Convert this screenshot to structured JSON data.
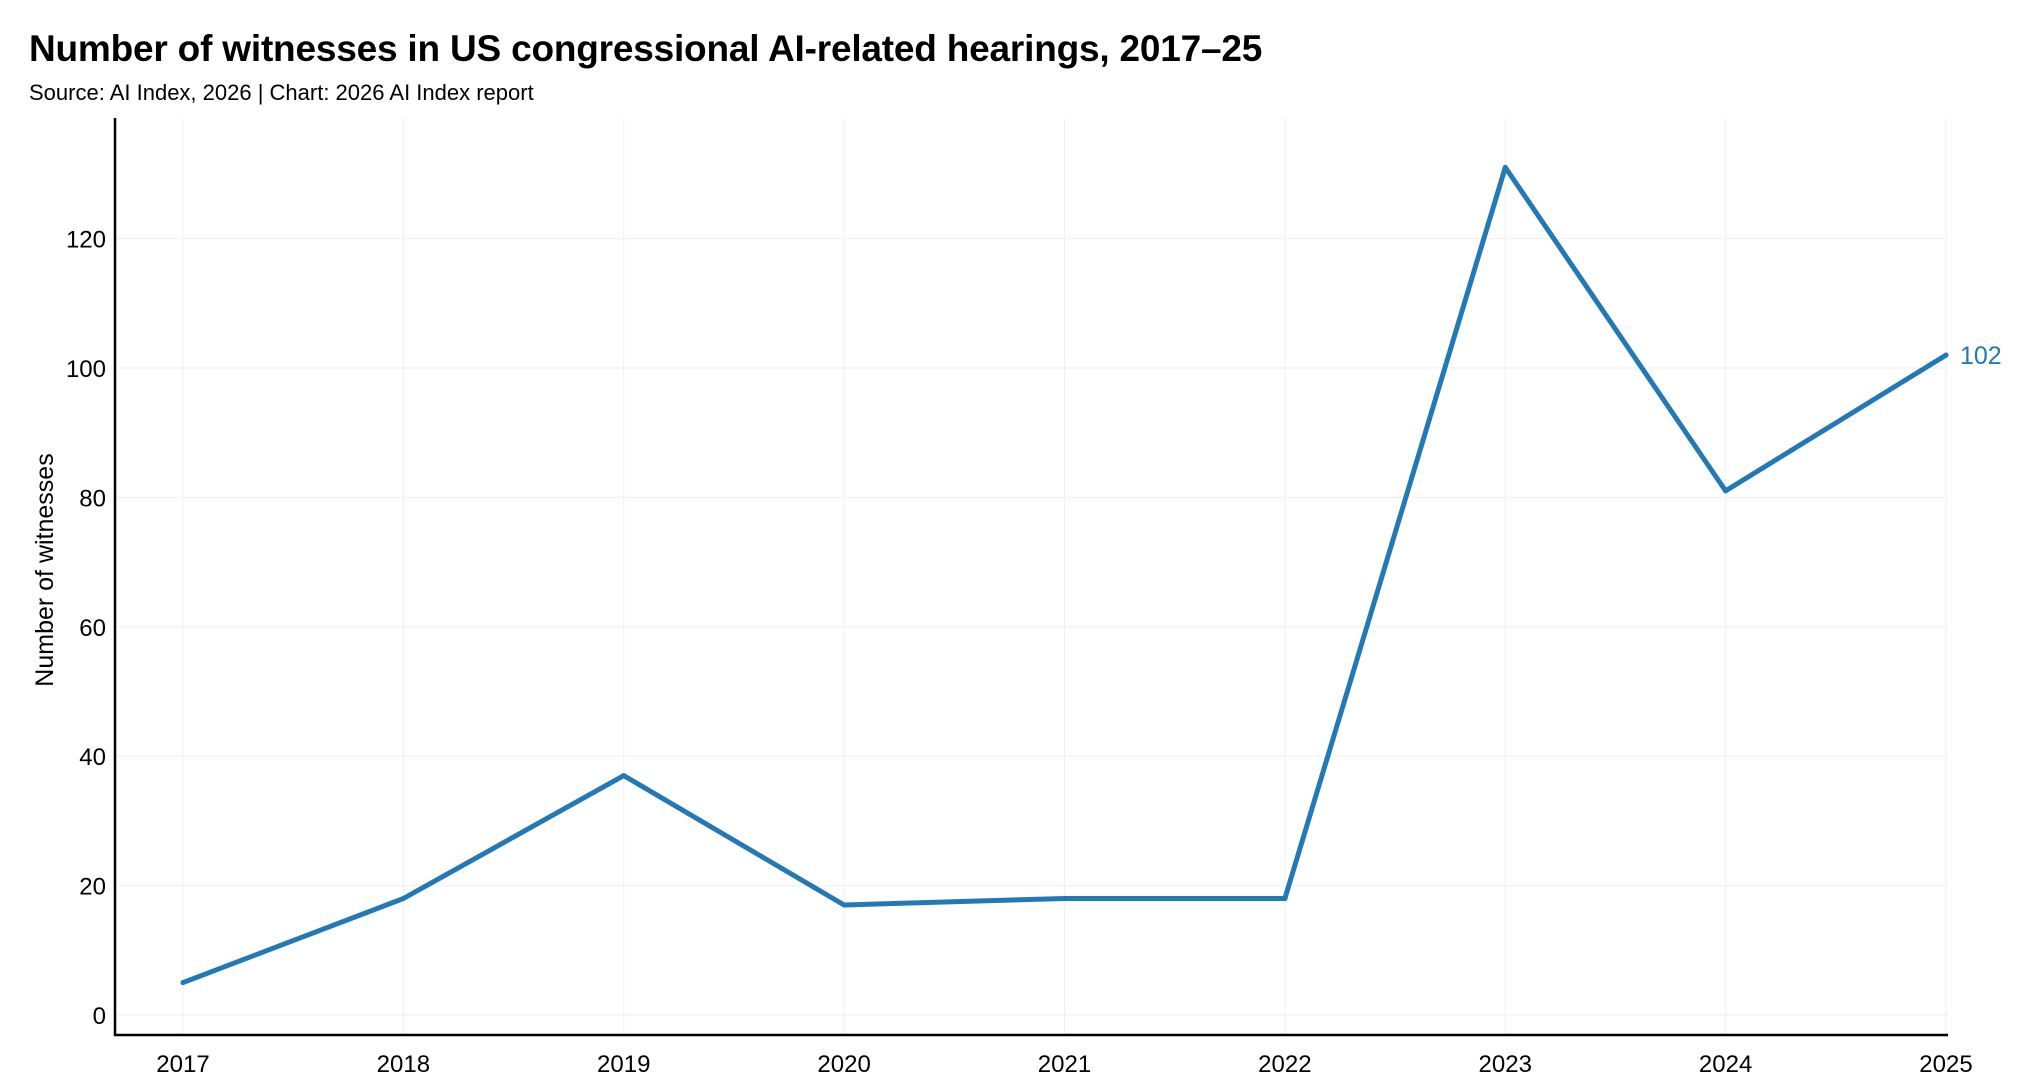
{
  "chart_data": {
    "type": "line",
    "title": "Number of witnesses in US congressional AI-related hearings, 2017–25",
    "subtitle": "Source: AI Index, 2026 | Chart: 2026 AI Index report",
    "xlabel": "",
    "ylabel": "Number of witnesses",
    "x": [
      "2017",
      "2018",
      "2019",
      "2020",
      "2021",
      "2022",
      "2023",
      "2024",
      "2025"
    ],
    "series": [
      {
        "name": "Number of witnesses",
        "values": [
          5,
          18,
          37,
          17,
          18,
          18,
          131,
          81,
          102
        ],
        "color": "#2379b5"
      }
    ],
    "end_label": "102",
    "ylim": [
      0,
      140
    ],
    "yticks": [
      "0",
      "20",
      "40",
      "60",
      "80",
      "100",
      "120"
    ],
    "grid": true,
    "legend": "none"
  }
}
